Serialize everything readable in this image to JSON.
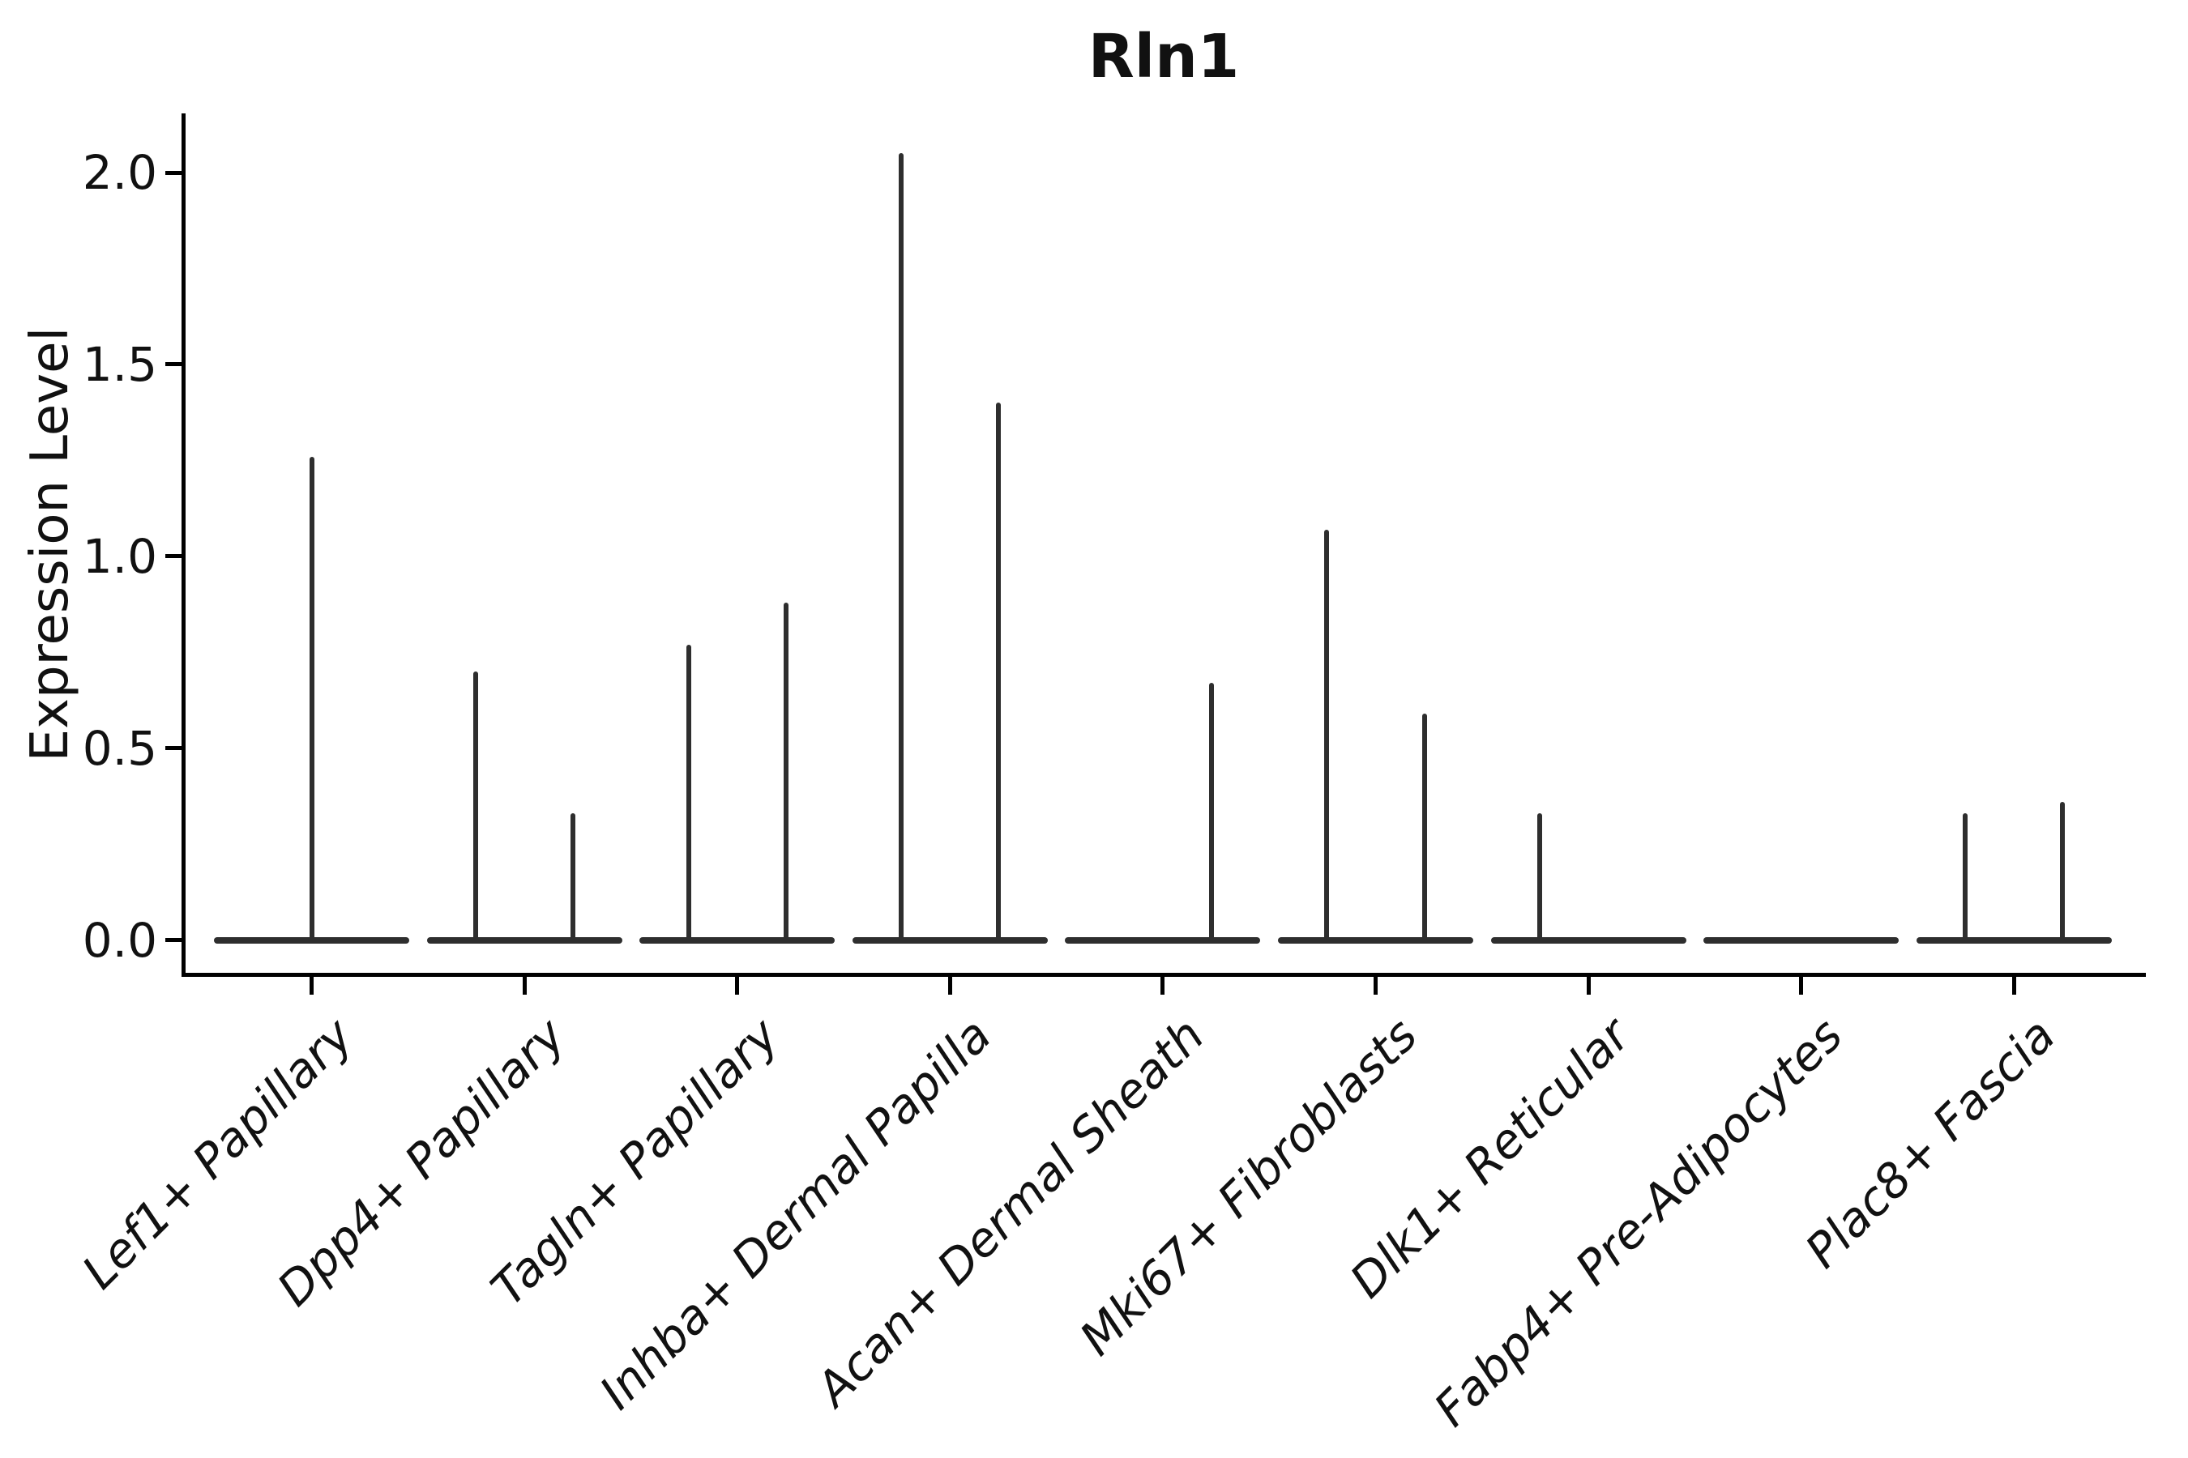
{
  "figure": {
    "title": "Rln1",
    "background_color": "#ffffff",
    "text_color": "#111111"
  },
  "chart_data": {
    "type": "violin",
    "title": "Rln1",
    "xlabel": "",
    "ylabel": "Expression Level",
    "grid": false,
    "legend": null,
    "ylim": [
      -0.08,
      2.15
    ],
    "ytick_values": [
      0.0,
      0.5,
      1.0,
      1.5,
      2.0
    ],
    "ytick_labels": [
      "0.0",
      "0.5",
      "1.0",
      "1.5",
      "2.0"
    ],
    "line_color": "#2e2e2e",
    "axis_color": "#000000",
    "style_note": "Seurat-style violin plot: each violin collapses to a flat bar at 0 with thin vertical spikes up to the max expression; categories with two sub-groups show two dodged spikes",
    "categories": [
      "Lef1+ Papillary",
      "Dpp4+ Papillary",
      "Tagln+ Papillary",
      "Inhba+ Dermal Papilla",
      "Acan+ Dermal Sheath",
      "Mki67+ Fibroblasts",
      "Dlk1+ Reticular",
      "Fabp4+ Pre-Adipocytes",
      "Plac8+ Fascia"
    ],
    "violins": [
      {
        "category": "Lef1+ Papillary",
        "spikes": [
          {
            "position": "center",
            "max": 1.26
          }
        ]
      },
      {
        "category": "Dpp4+ Papillary",
        "spikes": [
          {
            "position": "left",
            "max": 0.7
          },
          {
            "position": "right",
            "max": 0.33
          }
        ]
      },
      {
        "category": "Tagln+ Papillary",
        "spikes": [
          {
            "position": "left",
            "max": 0.77
          },
          {
            "position": "right",
            "max": 0.88
          }
        ]
      },
      {
        "category": "Inhba+ Dermal Papilla",
        "spikes": [
          {
            "position": "left",
            "max": 2.05
          },
          {
            "position": "right",
            "max": 1.4
          }
        ]
      },
      {
        "category": "Acan+ Dermal Sheath",
        "spikes": [
          {
            "position": "right",
            "max": 0.67
          }
        ]
      },
      {
        "category": "Mki67+ Fibroblasts",
        "spikes": [
          {
            "position": "left",
            "max": 1.07
          },
          {
            "position": "right",
            "max": 0.59
          }
        ]
      },
      {
        "category": "Dlk1+ Reticular",
        "spikes": [
          {
            "position": "left",
            "max": 0.33
          }
        ]
      },
      {
        "category": "Fabp4+ Pre-Adipocytes",
        "spikes": []
      },
      {
        "category": "Plac8+ Fascia",
        "spikes": [
          {
            "position": "left",
            "max": 0.33
          },
          {
            "position": "right",
            "max": 0.36
          }
        ]
      }
    ]
  }
}
